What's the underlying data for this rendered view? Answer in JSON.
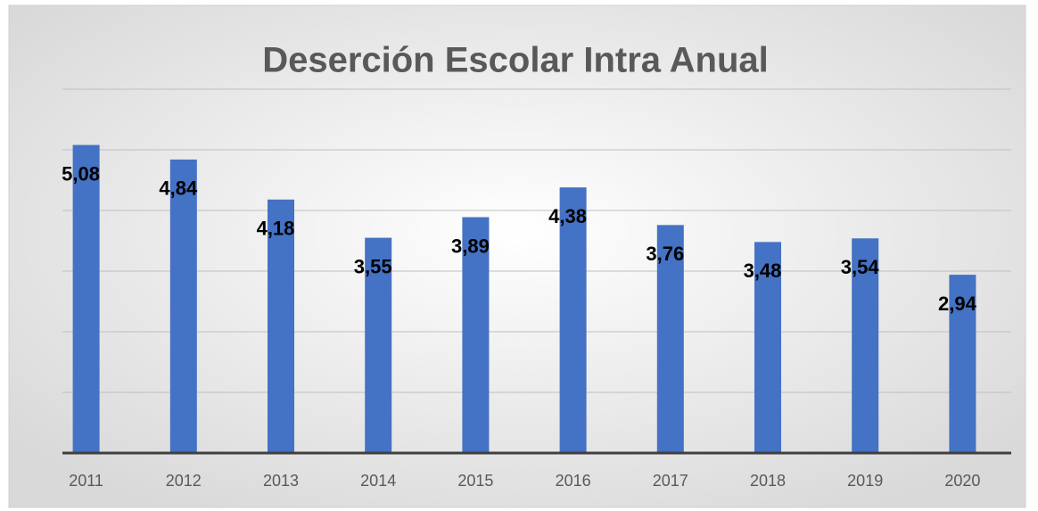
{
  "chart_data": {
    "type": "bar",
    "title": "Deserción Escolar Intra Anual",
    "categories": [
      "2011",
      "2012",
      "2013",
      "2014",
      "2015",
      "2016",
      "2017",
      "2018",
      "2019",
      "2020"
    ],
    "values": [
      5.08,
      4.84,
      4.18,
      3.55,
      3.89,
      4.38,
      3.76,
      3.48,
      3.54,
      2.94
    ],
    "value_labels": [
      "5,08",
      "4,84",
      "4,18",
      "3,55",
      "3,89",
      "4,38",
      "3,76",
      "3,48",
      "3,54",
      "2,94"
    ],
    "color": "#4472c4",
    "ylim": [
      0,
      6
    ],
    "yticks": [
      0,
      1,
      2,
      3,
      4,
      5,
      6
    ],
    "grid": true
  }
}
